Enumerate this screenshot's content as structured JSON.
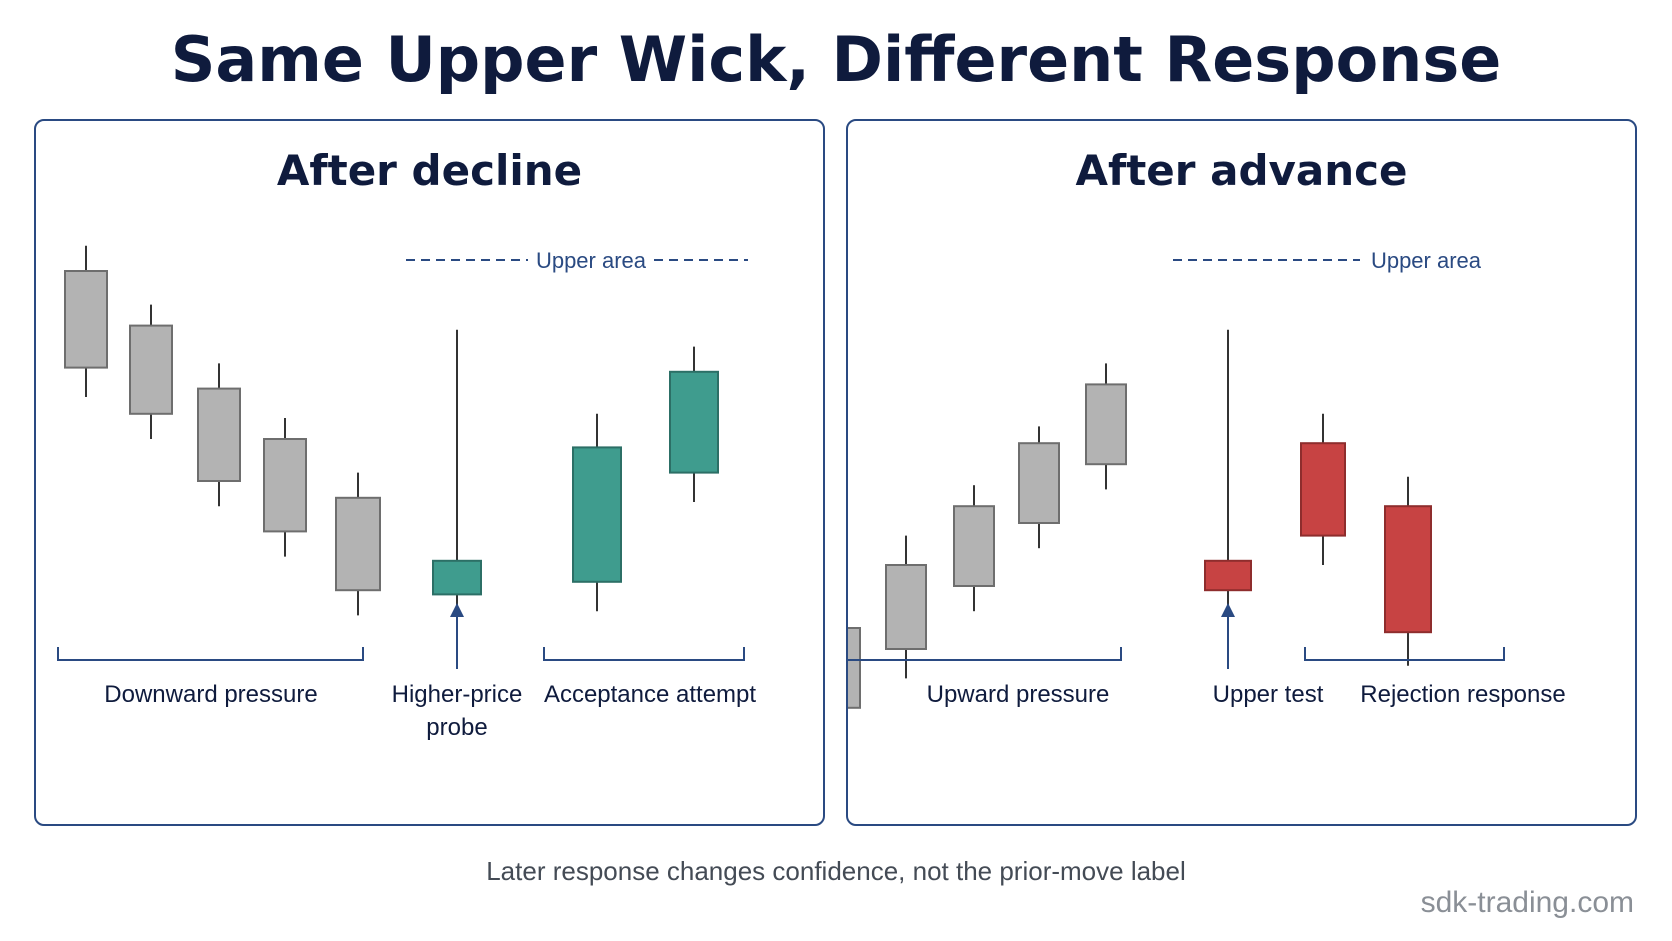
{
  "title": "Same Upper Wick, Different Response",
  "colors": {
    "neutral_body": "#b3b3b3",
    "neutral_border": "#6e6e6e",
    "bull_body": "#3f9c8e",
    "bull_border": "#2c6f66",
    "bear_body": "#c74343",
    "bear_border": "#8e2d2d",
    "accent": "#2a4a82",
    "wick": "#333333"
  },
  "panels": [
    {
      "title": "After decline",
      "upper_area_label": "Upper area",
      "candles": [
        {
          "role": "context",
          "color": "neutral",
          "high": 0.96,
          "top": 0.9,
          "bottom": 0.67,
          "low": 0.6
        },
        {
          "role": "context",
          "color": "neutral",
          "high": 0.82,
          "top": 0.77,
          "bottom": 0.56,
          "low": 0.5
        },
        {
          "role": "context",
          "color": "neutral",
          "high": 0.68,
          "top": 0.62,
          "bottom": 0.4,
          "low": 0.34
        },
        {
          "role": "context",
          "color": "neutral",
          "high": 0.55,
          "top": 0.5,
          "bottom": 0.28,
          "low": 0.22
        },
        {
          "role": "context",
          "color": "neutral",
          "high": 0.42,
          "top": 0.36,
          "bottom": 0.14,
          "low": 0.08
        },
        {
          "role": "wick",
          "color": "bull",
          "high": 0.76,
          "top": 0.21,
          "bottom": 0.13,
          "low": 0.05
        },
        {
          "role": "response",
          "color": "bull",
          "high": 0.56,
          "top": 0.48,
          "bottom": 0.16,
          "low": 0.09
        },
        {
          "role": "response",
          "color": "bull",
          "high": 0.72,
          "top": 0.66,
          "bottom": 0.42,
          "low": 0.35
        }
      ],
      "labels": {
        "context": "Downward pressure",
        "wick": "Higher-price probe",
        "response": "Acceptance attempt"
      }
    },
    {
      "title": "After advance",
      "upper_area_label": "Upper area",
      "candles": [
        {
          "role": "context",
          "color": "neutral",
          "high": 0.11,
          "top": 0.05,
          "bottom": -0.14,
          "low": -0.19
        },
        {
          "role": "context",
          "color": "neutral",
          "high": 0.27,
          "top": 0.2,
          "bottom": 0.0,
          "low": -0.07
        },
        {
          "role": "context",
          "color": "neutral",
          "high": 0.39,
          "top": 0.34,
          "bottom": 0.15,
          "low": 0.09
        },
        {
          "role": "context",
          "color": "neutral",
          "high": 0.53,
          "top": 0.49,
          "bottom": 0.3,
          "low": 0.24
        },
        {
          "role": "context",
          "color": "neutral",
          "high": 0.68,
          "top": 0.63,
          "bottom": 0.44,
          "low": 0.38
        },
        {
          "role": "wick",
          "color": "bear",
          "high": 0.76,
          "top": 0.21,
          "bottom": 0.14,
          "low": 0.05
        },
        {
          "role": "response",
          "color": "bear",
          "high": 0.56,
          "top": 0.49,
          "bottom": 0.27,
          "low": 0.2
        },
        {
          "role": "response",
          "color": "bear",
          "high": 0.41,
          "top": 0.34,
          "bottom": 0.04,
          "low": -0.04
        }
      ],
      "labels": {
        "context": "Upward pressure",
        "wick": "Upper test",
        "response": "Rejection response"
      }
    }
  ],
  "caption": "Later response changes confidence, not the prior-move label",
  "watermark": "sdk-trading.com"
}
